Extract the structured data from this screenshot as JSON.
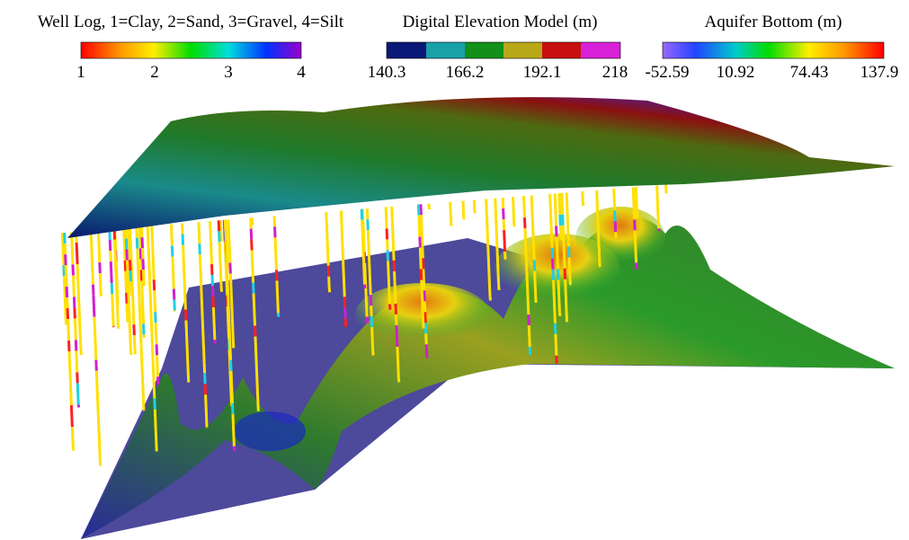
{
  "legends": [
    {
      "title": "Well Log, 1=Clay, 2=Sand, 3=Gravel, 4=Silt",
      "ticks": [
        "1",
        "2",
        "3",
        "4"
      ]
    },
    {
      "title": "Digital Elevation Model (m)",
      "ticks": [
        "140.3",
        "166.2",
        "192.1",
        "218"
      ]
    },
    {
      "title": "Aquifer Bottom (m)",
      "ticks": [
        "-52.59",
        "10.92",
        "74.43",
        "137.9"
      ]
    }
  ]
}
